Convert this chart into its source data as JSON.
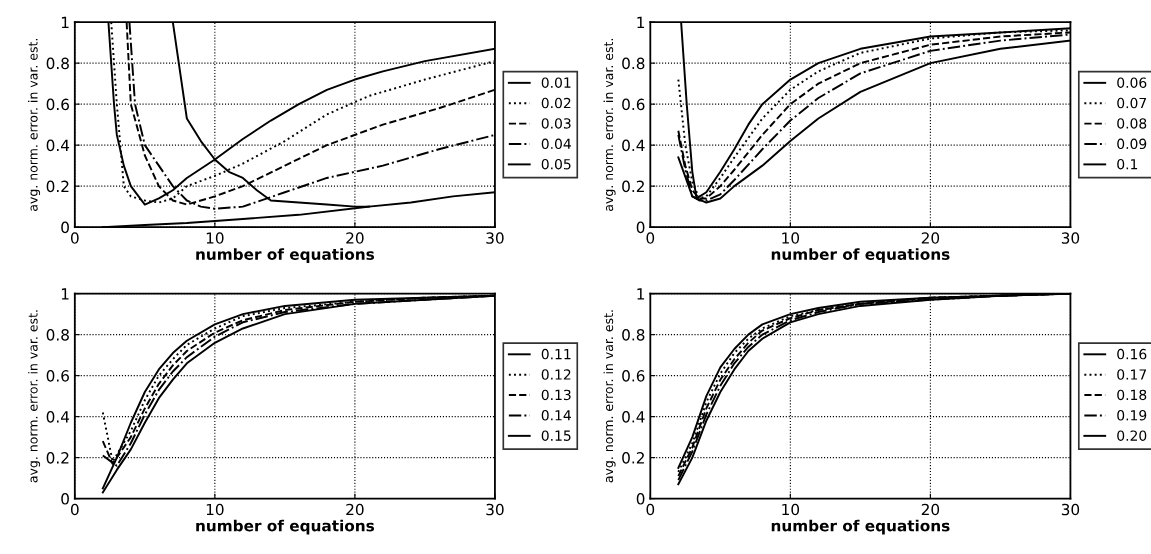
{
  "chart_data": [
    {
      "type": "line",
      "xlabel": "number of equations",
      "ylabel": "avg. norm. error. in var. est.",
      "xlim": [
        0,
        30
      ],
      "ylim": [
        0,
        1
      ],
      "xticks": [
        0,
        10,
        20,
        30
      ],
      "yticks": [
        0,
        0.2,
        0.4,
        0.6,
        0.8,
        1
      ],
      "grid": true,
      "legend": "right",
      "series": [
        {
          "name": "0.01",
          "color": "#000000",
          "line_style": "solid",
          "x": [
            7,
            8,
            9,
            10,
            11,
            12,
            13,
            14,
            16,
            18,
            20,
            21,
            24,
            27,
            30
          ],
          "values": [
            1,
            0.53,
            0.42,
            0.33,
            0.27,
            0.24,
            0.18,
            0.13,
            0.12,
            0.11,
            0.1,
            0.1,
            0.12,
            0.15,
            0.17
          ]
        },
        {
          "name": "0.02",
          "color": "#000000",
          "line_style": "dotted",
          "x": [
            2.6,
            3,
            3.5,
            4,
            5,
            6,
            7,
            8,
            10,
            12,
            15,
            18,
            21,
            25,
            30
          ],
          "values": [
            1,
            0.6,
            0.2,
            0.15,
            0.13,
            0.12,
            0.14,
            0.2,
            0.25,
            0.31,
            0.42,
            0.55,
            0.64,
            0.72,
            0.81
          ]
        },
        {
          "name": "0.03",
          "color": "#000000",
          "line_style": "dashed",
          "x": [
            3.7,
            4,
            5,
            6,
            7,
            8,
            10,
            12,
            15,
            18,
            22,
            26,
            30
          ],
          "values": [
            1,
            0.6,
            0.35,
            0.2,
            0.13,
            0.11,
            0.15,
            0.2,
            0.3,
            0.4,
            0.5,
            0.58,
            0.67
          ]
        },
        {
          "name": "0.04",
          "color": "#000000",
          "line_style": "dashdot",
          "x": [
            3.9,
            4.3,
            5,
            6,
            7,
            8,
            9,
            10,
            12,
            15,
            18,
            22,
            26,
            30
          ],
          "values": [
            1,
            0.6,
            0.4,
            0.3,
            0.2,
            0.13,
            0.1,
            0.09,
            0.1,
            0.17,
            0.24,
            0.3,
            0.38,
            0.45
          ]
        },
        {
          "name": "0.05",
          "color": "#000000",
          "line_style": "solid",
          "x": [
            2.4,
            2.8,
            3,
            3.5,
            4,
            5,
            6,
            7,
            8,
            10,
            12,
            14,
            16,
            18,
            20,
            22,
            25,
            30
          ],
          "values": [
            1,
            0.6,
            0.45,
            0.3,
            0.2,
            0.11,
            0.14,
            0.18,
            0.24,
            0.33,
            0.43,
            0.52,
            0.6,
            0.67,
            0.72,
            0.76,
            0.81,
            0.87
          ]
        },
        {
          "color": "#000000",
          "line_style": "solid",
          "x": [
            2,
            5,
            8,
            12,
            16,
            21
          ],
          "values": [
            0,
            0.01,
            0.02,
            0.04,
            0.06,
            0.1
          ]
        }
      ]
    },
    {
      "type": "line",
      "xlabel": "number of equations",
      "ylabel": "avg. norm. error. in var. est.",
      "xlim": [
        0,
        30
      ],
      "ylim": [
        0,
        1
      ],
      "xticks": [
        0,
        10,
        20,
        30
      ],
      "yticks": [
        0,
        0.2,
        0.4,
        0.6,
        0.8,
        1
      ],
      "grid": true,
      "legend": "right",
      "series": [
        {
          "name": "0.06",
          "color": "#000000",
          "line_style": "solid",
          "x": [
            2.2,
            2.6,
            3,
            3.3,
            4,
            5,
            6,
            7,
            8,
            10,
            12,
            15,
            20,
            25,
            30
          ],
          "values": [
            1,
            0.6,
            0.27,
            0.14,
            0.17,
            0.27,
            0.38,
            0.5,
            0.6,
            0.72,
            0.8,
            0.87,
            0.93,
            0.95,
            0.97
          ]
        },
        {
          "name": "0.07",
          "color": "#000000",
          "line_style": "dotted",
          "x": [
            2,
            2.5,
            3,
            3.5,
            4,
            5,
            6,
            8,
            10,
            12,
            15,
            20,
            25,
            30
          ],
          "values": [
            0.72,
            0.4,
            0.22,
            0.14,
            0.15,
            0.24,
            0.34,
            0.53,
            0.67,
            0.76,
            0.85,
            0.92,
            0.95,
            0.96
          ]
        },
        {
          "name": "0.08",
          "color": "#000000",
          "line_style": "dashed",
          "x": [
            2,
            2.5,
            3,
            3.5,
            4,
            5,
            6,
            8,
            10,
            12,
            15,
            20,
            25,
            30
          ],
          "values": [
            0.47,
            0.3,
            0.18,
            0.14,
            0.14,
            0.2,
            0.28,
            0.45,
            0.6,
            0.7,
            0.8,
            0.89,
            0.93,
            0.95
          ]
        },
        {
          "name": "0.09",
          "color": "#000000",
          "line_style": "dashdot",
          "x": [
            2,
            2.5,
            3,
            3.5,
            4,
            5,
            6,
            8,
            10,
            12,
            15,
            20,
            25,
            30
          ],
          "values": [
            0.45,
            0.28,
            0.15,
            0.13,
            0.13,
            0.16,
            0.23,
            0.38,
            0.52,
            0.63,
            0.75,
            0.86,
            0.91,
            0.94
          ]
        },
        {
          "name": "0.1",
          "color": "#000000",
          "line_style": "solid",
          "x": [
            2,
            3,
            4,
            5,
            6,
            8,
            10,
            12,
            15,
            20,
            25,
            30
          ],
          "values": [
            0.34,
            0.15,
            0.12,
            0.14,
            0.2,
            0.3,
            0.42,
            0.53,
            0.66,
            0.8,
            0.87,
            0.91
          ]
        }
      ]
    },
    {
      "type": "line",
      "xlabel": "number of equations",
      "ylabel": "avg. norm. error. in var. est.",
      "xlim": [
        0,
        30
      ],
      "ylim": [
        0,
        1
      ],
      "xticks": [
        0,
        10,
        20,
        30
      ],
      "yticks": [
        0,
        0.2,
        0.4,
        0.6,
        0.8,
        1
      ],
      "grid": true,
      "legend": "right",
      "series": [
        {
          "name": "0.11",
          "color": "#000000",
          "line_style": "solid",
          "x": [
            2,
            3,
            4,
            5,
            6,
            7,
            8,
            10,
            12,
            15,
            20,
            25,
            30
          ],
          "values": [
            0.05,
            0.2,
            0.37,
            0.52,
            0.63,
            0.71,
            0.77,
            0.85,
            0.9,
            0.94,
            0.97,
            0.98,
            0.99
          ]
        },
        {
          "name": "0.12",
          "color": "#000000",
          "line_style": "dotted",
          "x": [
            2,
            2.7,
            4,
            5,
            6,
            7,
            8,
            10,
            12,
            15,
            20,
            25,
            30
          ],
          "values": [
            0.42,
            0.18,
            0.33,
            0.48,
            0.6,
            0.68,
            0.75,
            0.83,
            0.89,
            0.93,
            0.96,
            0.98,
            0.99
          ]
        },
        {
          "name": "0.13",
          "color": "#000000",
          "line_style": "dashed",
          "x": [
            2,
            2.7,
            4,
            5,
            6,
            7,
            8,
            10,
            12,
            15,
            20,
            25,
            30
          ],
          "values": [
            0.28,
            0.17,
            0.3,
            0.44,
            0.56,
            0.65,
            0.72,
            0.81,
            0.87,
            0.92,
            0.96,
            0.98,
            0.99
          ]
        },
        {
          "name": "0.14",
          "color": "#000000",
          "line_style": "dashdot",
          "x": [
            2,
            3,
            4,
            5,
            6,
            7,
            8,
            10,
            12,
            15,
            20,
            25,
            30
          ],
          "values": [
            0.21,
            0.16,
            0.27,
            0.41,
            0.53,
            0.62,
            0.69,
            0.79,
            0.86,
            0.91,
            0.95,
            0.97,
            0.99
          ]
        },
        {
          "name": "0.15",
          "color": "#000000",
          "line_style": "solid",
          "x": [
            2,
            3,
            4,
            5,
            6,
            7,
            8,
            10,
            12,
            15,
            20,
            25,
            30
          ],
          "values": [
            0.03,
            0.14,
            0.24,
            0.37,
            0.49,
            0.58,
            0.66,
            0.76,
            0.83,
            0.9,
            0.95,
            0.97,
            0.99
          ]
        }
      ]
    },
    {
      "type": "line",
      "xlabel": "number of equations",
      "ylabel": "avg. norm. error. in var. est.",
      "xlim": [
        0,
        30
      ],
      "ylim": [
        0,
        1
      ],
      "xticks": [
        0,
        10,
        20,
        30
      ],
      "yticks": [
        0,
        0.2,
        0.4,
        0.6,
        0.8,
        1
      ],
      "grid": true,
      "legend": "right",
      "series": [
        {
          "name": "0.16",
          "color": "#000000",
          "line_style": "solid",
          "x": [
            2,
            3,
            4,
            5,
            6,
            7,
            8,
            10,
            12,
            15,
            20,
            25,
            30
          ],
          "values": [
            0.15,
            0.3,
            0.5,
            0.64,
            0.73,
            0.8,
            0.85,
            0.9,
            0.93,
            0.96,
            0.98,
            0.99,
            1.0
          ]
        },
        {
          "name": "0.17",
          "color": "#000000",
          "line_style": "dotted",
          "x": [
            2,
            3,
            4,
            5,
            6,
            7,
            8,
            10,
            12,
            15,
            20,
            25,
            30
          ],
          "values": [
            0.13,
            0.27,
            0.47,
            0.61,
            0.71,
            0.78,
            0.83,
            0.89,
            0.92,
            0.95,
            0.98,
            0.99,
            1.0
          ]
        },
        {
          "name": "0.18",
          "color": "#000000",
          "line_style": "dashed",
          "x": [
            2,
            3,
            4,
            5,
            6,
            7,
            8,
            10,
            12,
            15,
            20,
            25,
            30
          ],
          "values": [
            0.11,
            0.25,
            0.44,
            0.58,
            0.68,
            0.76,
            0.82,
            0.88,
            0.92,
            0.95,
            0.98,
            0.99,
            1.0
          ]
        },
        {
          "name": "0.19",
          "color": "#000000",
          "line_style": "dashdot",
          "x": [
            2,
            3,
            4,
            5,
            6,
            7,
            8,
            10,
            12,
            15,
            20,
            25,
            30
          ],
          "values": [
            0.09,
            0.23,
            0.41,
            0.55,
            0.66,
            0.74,
            0.8,
            0.87,
            0.91,
            0.95,
            0.97,
            0.99,
            1.0
          ]
        },
        {
          "name": "0.20",
          "color": "#000000",
          "line_style": "solid",
          "x": [
            2,
            3,
            4,
            5,
            6,
            7,
            8,
            10,
            12,
            15,
            20,
            25,
            30
          ],
          "values": [
            0.07,
            0.2,
            0.38,
            0.52,
            0.63,
            0.72,
            0.78,
            0.86,
            0.9,
            0.94,
            0.97,
            0.99,
            1.0
          ]
        }
      ]
    }
  ]
}
